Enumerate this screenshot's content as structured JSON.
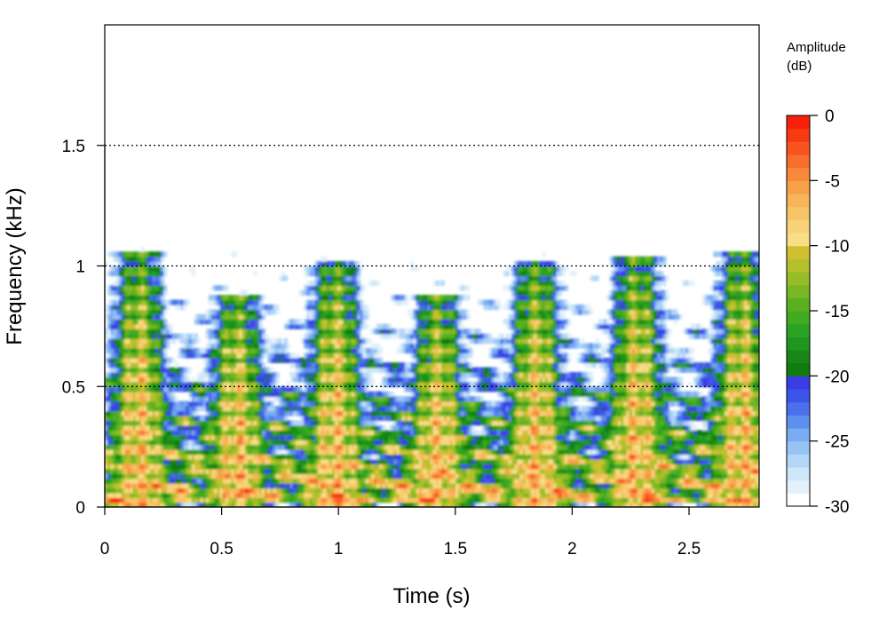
{
  "chart_data": {
    "type": "heatmap",
    "title": "",
    "xlabel": "Time (s)",
    "ylabel": "Frequency (kHz)",
    "xlim": [
      0,
      2.8
    ],
    "ylim": [
      0,
      2.0
    ],
    "x_ticks": [
      0,
      0.5,
      1,
      1.5,
      2,
      2.5
    ],
    "x_tick_labels": [
      "0",
      "0.5",
      "1",
      "1.5",
      "2",
      "2.5"
    ],
    "y_ticks": [
      0,
      0.5,
      1,
      1.5
    ],
    "y_tick_labels": [
      "0",
      "0.5",
      "1",
      "1.5"
    ],
    "reference_lines_y": [
      0.5,
      1.0,
      1.5
    ],
    "grid": false,
    "colorbar": {
      "title_line1": "Amplitude",
      "title_line2": "(dB)",
      "range": [
        -30,
        0
      ],
      "ticks": [
        0,
        -5,
        -10,
        -15,
        -20,
        -25,
        -30
      ],
      "tick_labels": [
        "0",
        "-5",
        "-10",
        "-15",
        "-20",
        "-25",
        "-30"
      ],
      "colors": [
        "#ffffff",
        "#e3f1fb",
        "#cde6f8",
        "#b3d6f6",
        "#98c4f4",
        "#7aacf2",
        "#6090ee",
        "#4a70ea",
        "#3c55e8",
        "#3a3ce8",
        "#117a11",
        "#178817",
        "#1f961f",
        "#2aa224",
        "#40aa20",
        "#5cb020",
        "#78b624",
        "#96bc28",
        "#b4c02c",
        "#d0c030",
        "#f8de86",
        "#f8d278",
        "#f8c468",
        "#f8b458",
        "#f8a048",
        "#f8883a",
        "#f86e2c",
        "#f85420",
        "#f83a14",
        "#f8200a"
      ]
    },
    "syllables": [
      {
        "time": 0.14,
        "top_freq": 1.05
      },
      {
        "time": 0.56,
        "top_freq": 0.88
      },
      {
        "time": 0.98,
        "top_freq": 1.02
      },
      {
        "time": 1.42,
        "top_freq": 0.88
      },
      {
        "time": 1.84,
        "top_freq": 1.02
      },
      {
        "time": 2.27,
        "top_freq": 1.04
      },
      {
        "time": 2.72,
        "top_freq": 1.06
      }
    ]
  }
}
